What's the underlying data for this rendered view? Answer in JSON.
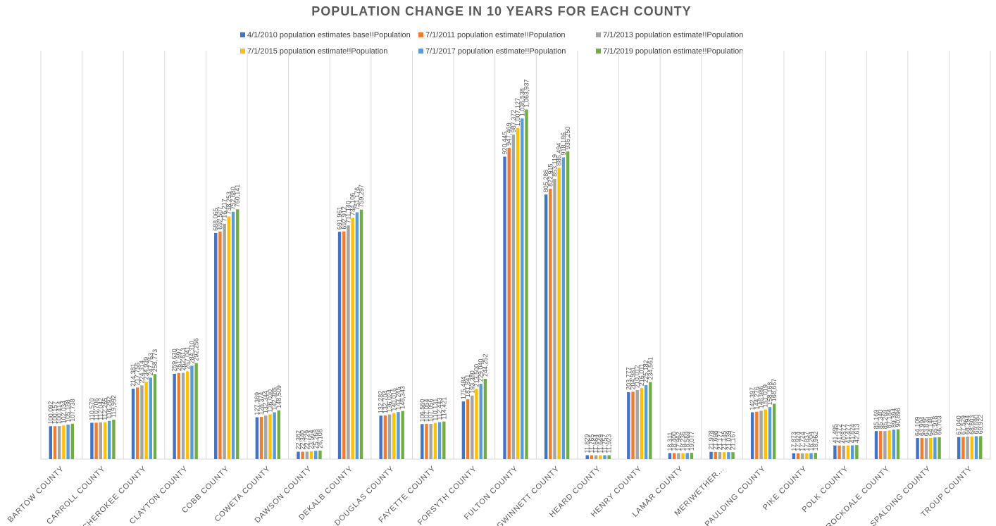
{
  "chart_data": {
    "type": "bar",
    "title": "POPULATION CHANGE IN 10 YEARS FOR EACH COUNTY",
    "xlabel": "",
    "ylabel": "",
    "ylim": [
      0,
      1200000
    ],
    "grid": "vertical category separators",
    "legend": "top-center",
    "categories": [
      "BARTOW COUNTY",
      "CARROLL COUNTY",
      "CHEROKEE COUNTY",
      "CLAYTON COUNTY",
      "COBB COUNTY",
      "COWETA COUNTY",
      "DAWSON COUNTY",
      "DEKALB COUNTY",
      "DOUGLAS COUNTY",
      "FAYETTE COUNTY",
      "FORSYTH COUNTY",
      "FULTON COUNTY",
      "GWINNETT COUNTY",
      "HEARD COUNTY",
      "HENRY COUNTY",
      "LAMAR COUNTY",
      "MERIWETHER…",
      "PAULDING COUNTY",
      "PIKE COUNTY",
      "POLK COUNTY",
      "ROCKDALE COUNTY",
      "SPALDING COUNTY",
      "TROUP COUNTY"
    ],
    "series": [
      {
        "name": "4/1/2010 population estimates base!!Population",
        "color": "#4472C4",
        "values": [
          100092,
          110570,
          214381,
          259630,
          688065,
          127369,
          22382,
          691961,
          132282,
          106560,
          175484,
          920445,
          805286,
          11829,
          203777,
          18311,
          21978,
          142397,
          17873,
          41495,
          85169,
          64109,
          67040
        ],
        "labels": [
          "100,092",
          "110,570",
          "214,381",
          "259,630",
          "688,065",
          "127,369",
          "22,382",
          "691,961",
          "132,282",
          "106,560",
          "175,484",
          "920,445",
          "805,286",
          "11,829",
          "203,777",
          "18,311",
          "21,978",
          "142,397",
          "17,873",
          "41,495",
          "85,169",
          "64,109",
          "67,040"
        ]
      },
      {
        "name": "7/1/2011 population estimate!!Population",
        "color": "#ED7D31",
        "values": [
          100157,
          110706,
          217756,
          261697,
          692507,
          128374,
          22340,
          692912,
          132704,
          107054,
          181841,
          947469,
          822915,
          11765,
          204981,
          18400,
          21698,
          144276,
          17924,
          41372,
          85340,
          63994,
          67529
        ],
        "labels": [
          "100,157",
          "110,706",
          "217,756",
          "261,697",
          "692,507",
          "128,374",
          "22,340",
          "692,912",
          "132,704",
          "107,054",
          "181,841",
          "947,469",
          "822,915",
          "11,765",
          "204,981",
          "18,400",
          "21,698",
          "144,276",
          "17,924",
          "41,372",
          "85,340",
          "63,994",
          "67,529"
        ]
      },
      {
        "name": "7/1/2013 population estimate!!Population",
        "color": "#A5A5A5",
        "values": [
          100414,
          112042,
          224314,
          262613,
          716217,
          132344,
          22729,
          711140,
          136024,
          107056,
          193380,
          987372,
          853119,
          11664,
          210012,
          17962,
          21177,
          146986,
          17724,
          40877,
          85269,
          63835,
          68294
        ],
        "labels": [
          "100,414",
          "112,042",
          "224,314",
          "262,613",
          "716,217",
          "132,344",
          "22,729",
          "711,140",
          "136,024",
          "107,056",
          "193,380",
          "987,372",
          "853,119",
          "11,664",
          "210,012",
          "17,962",
          "21,177",
          "146,986",
          "17,724",
          "40,877",
          "85,269",
          "63,835",
          "68,294"
        ]
      },
      {
        "name": "7/1/2015 population estimate!!Population",
        "color": "#FFC000",
        "values": [
          102034,
          112265,
          234939,
          267041,
          738253,
          136030,
          23564,
          734106,
          140016,
          110131,
          213500,
          1007127,
          886494,
          11649,
          216011,
          18236,
          21145,
          151019,
          17837,
          41477,
          87184,
          64148,
          68603
        ],
        "labels": [
          "102,034",
          "112,265",
          "234,939",
          "267,041",
          "738,253",
          "136,030",
          "23,564",
          "734,106",
          "140,016",
          "110,131",
          "213,500",
          "1,007,127",
          "886,494",
          "11,649",
          "216,011",
          "18,236",
          "21,145",
          "151,019",
          "17,837",
          "41,477",
          "87,184",
          "64,148",
          "68,603"
        ]
      },
      {
        "name": "7/1/2017 population estimate!!Population",
        "color": "#5B9BD5",
        "values": [
          105188,
          116292,
          247763,
          284310,
          752680,
          142385,
          25268,
          751176,
          143245,
          112443,
          229040,
          1036538,
          918186,
          11757,
          225182,
          18569,
          21039,
          158168,
          18204,
          41824,
          89394,
          65918,
          69690
        ],
        "labels": [
          "105,188",
          "116,292",
          "247,763",
          "284,310",
          "752,680",
          "142,385",
          "25,268",
          "751,176",
          "143,245",
          "112,443",
          "229,040",
          "1,036,538",
          "918,186",
          "11,757",
          "225,182",
          "18,569",
          "21,039",
          "158,168",
          "18,204",
          "41,824",
          "89,394",
          "65,918",
          "69,690"
        ]
      },
      {
        "name": "7/1/2019 population estimate!!Population",
        "color": "#70AD47",
        "values": [
          107738,
          119992,
          258773,
          292256,
          760141,
          148509,
          26108,
          759297,
          146343,
          114421,
          244252,
          1063937,
          936250,
          11923,
          234561,
          19077,
          21167,
          168667,
          18962,
          42613,
          90896,
          66703,
          69922
        ],
        "labels": [
          "107,738",
          "119,992",
          "258,773",
          "292,256",
          "760,141",
          "148,509",
          "26,108",
          "759,297",
          "146,343",
          "114,421",
          "244,252",
          "1,063,937",
          "936,250",
          "11,923",
          "234,561",
          "19,077",
          "21,167",
          "168,667",
          "18,962",
          "42,613",
          "90,896",
          "66,703",
          "69,922"
        ]
      }
    ]
  }
}
